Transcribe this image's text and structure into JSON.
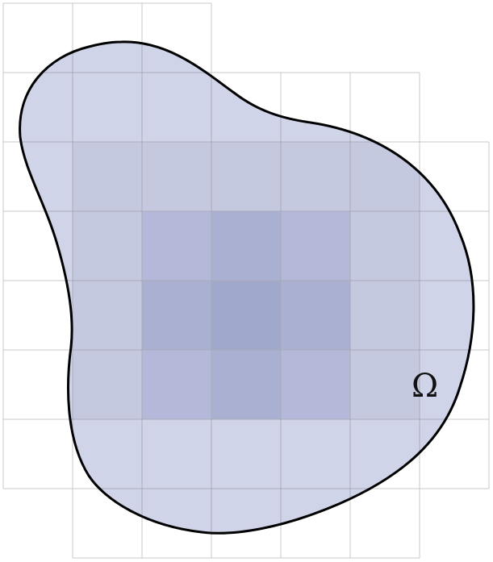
{
  "region": {
    "label": "Ω"
  },
  "colors": {
    "grid_line": "#c9c9c9",
    "region_fill": "#d0d4e8",
    "region_fill_mid": "#c4c9e0",
    "region_fill_dark": "#b4b9d9",
    "region_fill_darker": "#aab0d2",
    "region_fill_darkest": "#a0a8cc",
    "boundary": "#000000"
  }
}
